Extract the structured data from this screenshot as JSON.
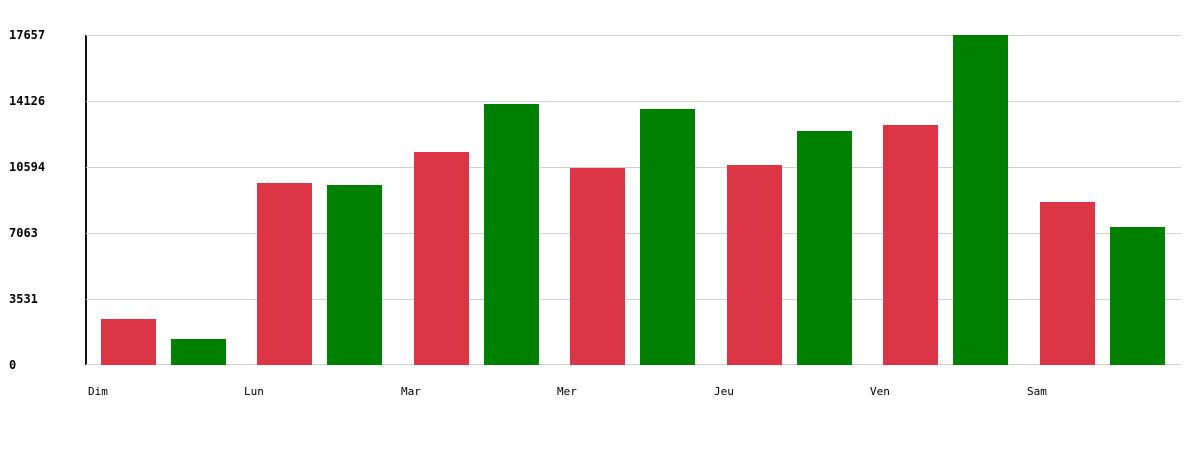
{
  "chart_data": {
    "type": "bar",
    "title": "",
    "categories": [
      "Dim",
      "Lun",
      "Mar",
      "Mer",
      "Jeu",
      "Ven",
      "Sam"
    ],
    "series": [
      {
        "name": "red",
        "color": "#dc3545",
        "values": [
          2460,
          9740,
          11400,
          10540,
          10700,
          12840,
          8720
        ]
      },
      {
        "name": "green",
        "color": "#008000",
        "values": [
          1400,
          9630,
          13970,
          13700,
          12520,
          17657,
          7380
        ]
      }
    ],
    "xlabel": "",
    "ylabel": "",
    "ylim": [
      0,
      17657
    ],
    "y_ticks": [
      0,
      3531,
      7063,
      10594,
      14126,
      17657
    ],
    "grid": true,
    "grid_color": "#d2d2d2",
    "axis_line_color": "#111111",
    "legend_position": "none",
    "background_color": "#ffffff"
  }
}
